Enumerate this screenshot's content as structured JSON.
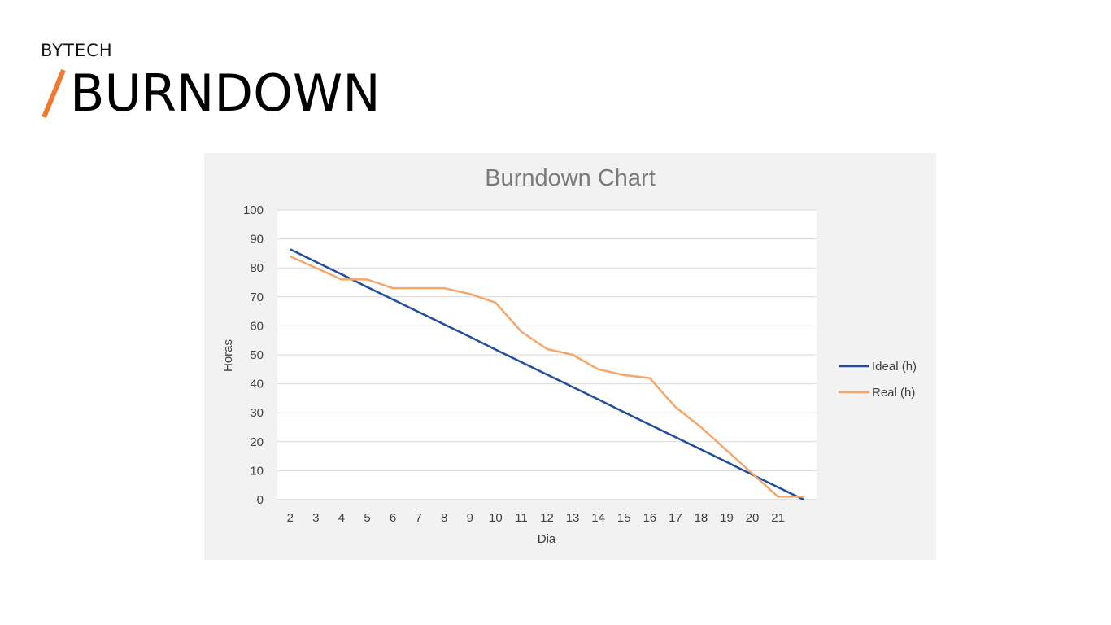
{
  "header": {
    "brand": "BYTECH",
    "slash": "/",
    "title": "BURNDOWN",
    "accent_color": "#f07830"
  },
  "chart_data": {
    "type": "line",
    "title": "Burndown Chart",
    "xlabel": "Dia",
    "ylabel": "Horas",
    "ylim": [
      0,
      100
    ],
    "yticks": [
      0,
      10,
      20,
      30,
      40,
      50,
      60,
      70,
      80,
      90,
      100
    ],
    "categories": [
      "2",
      "3",
      "4",
      "5",
      "6",
      "7",
      "8",
      "9",
      "10",
      "11",
      "12",
      "13",
      "14",
      "15",
      "16",
      "17",
      "18",
      "19",
      "20",
      "21",
      ""
    ],
    "grid": true,
    "legend_position": "right",
    "series": [
      {
        "name": "Ideal (h)",
        "color": "#1f4e9e",
        "values": [
          86.4,
          82.1,
          77.8,
          73.4,
          69.1,
          64.8,
          60.5,
          56.2,
          51.8,
          47.5,
          43.2,
          38.9,
          34.6,
          30.2,
          25.9,
          21.6,
          17.3,
          13.0,
          8.6,
          4.3,
          0
        ]
      },
      {
        "name": "Real (h)",
        "color": "#f5a66a",
        "values": [
          84,
          80,
          76,
          76,
          73,
          73,
          73,
          71,
          68,
          58,
          52,
          50,
          45,
          43,
          42,
          32,
          25,
          17,
          9,
          1,
          1
        ]
      }
    ]
  }
}
